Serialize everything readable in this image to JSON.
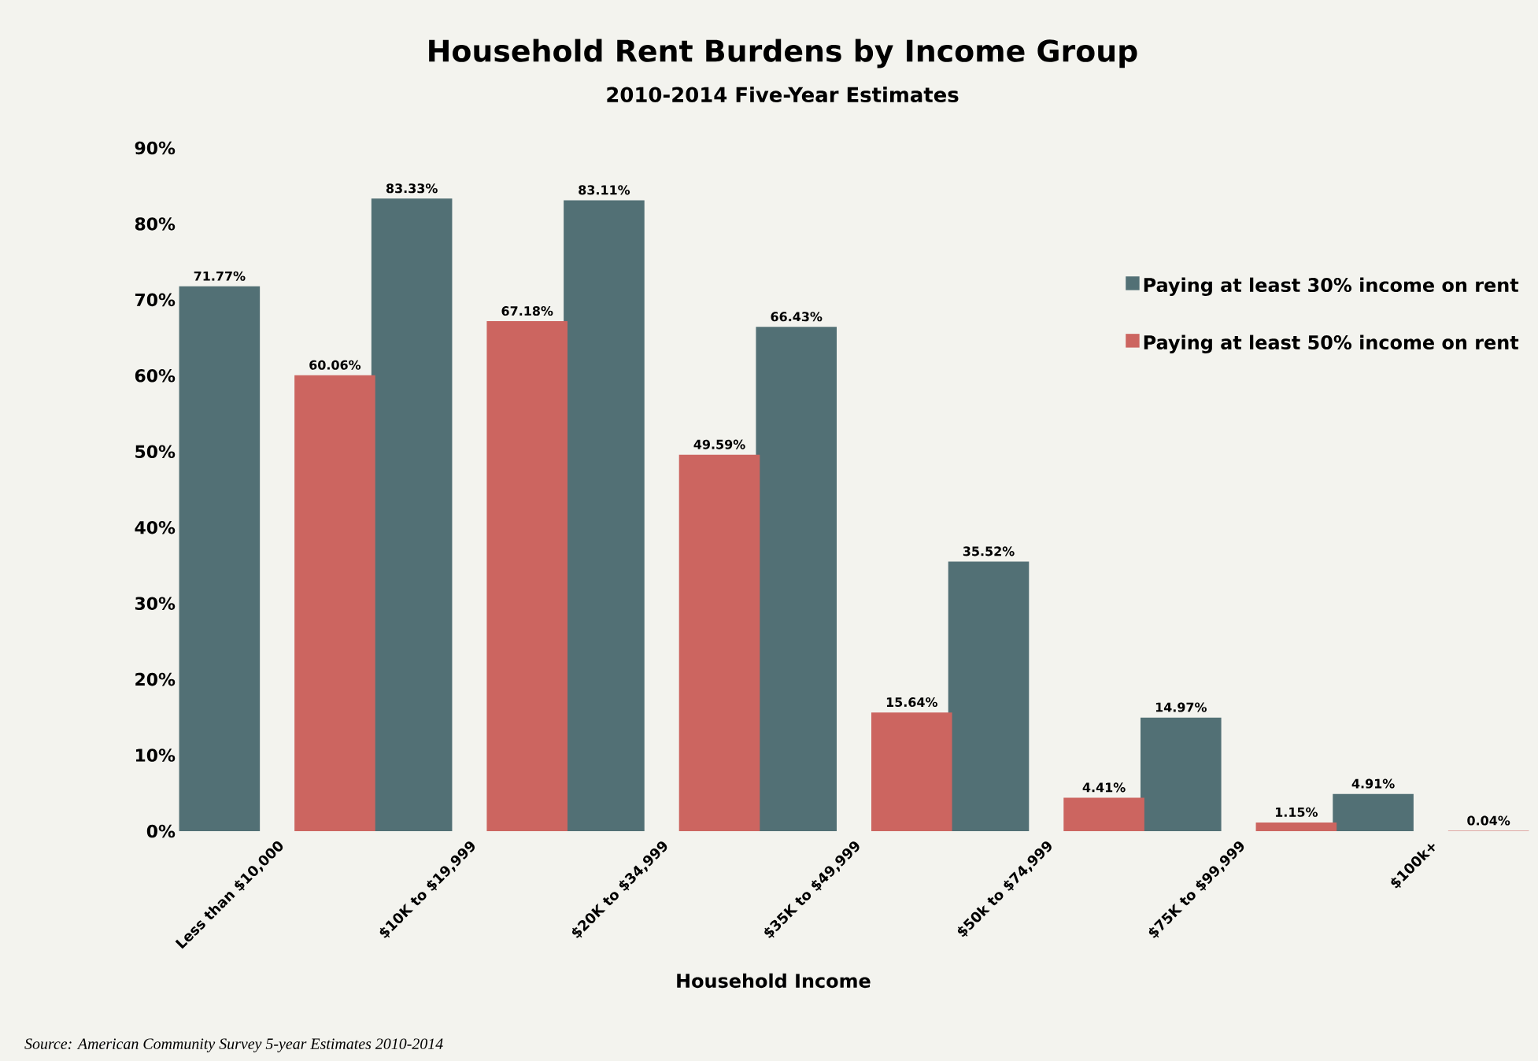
{
  "chart_data": {
    "type": "bar",
    "title": "Household Rent Burdens by Income Group",
    "subtitle": "2010-2014 Five-Year Estimates",
    "xlabel": "Household Income",
    "categories": [
      "Less than $10,000",
      "$10K to $19,999",
      "$20K to $34,999",
      "$35K to $49,999",
      "$50k to $74,999",
      "$75K to $99,999",
      "$100k+"
    ],
    "series": [
      {
        "name": "Paying at least 30% income on rent",
        "color": "#527075",
        "values": [
          71.77,
          83.33,
          83.11,
          66.43,
          35.52,
          14.97,
          4.91
        ],
        "value_labels": [
          "71.77%",
          "83.33%",
          "83.11%",
          "66.43%",
          "35.52%",
          "14.97%",
          "4.91%"
        ]
      },
      {
        "name": "Paying at least 50% income on rent",
        "color": "#cc6560",
        "values": [
          60.06,
          67.18,
          49.59,
          15.64,
          4.41,
          1.15,
          0.04
        ],
        "value_labels": [
          "60.06%",
          "67.18%",
          "49.59%",
          "15.64%",
          "4.41%",
          "1.15%",
          "0.04%"
        ]
      }
    ],
    "ylim": [
      0,
      90
    ],
    "yticks": [
      {
        "value": 0,
        "label": "0%"
      },
      {
        "value": 10,
        "label": "10%"
      },
      {
        "value": 20,
        "label": "20%"
      },
      {
        "value": 30,
        "label": "30%"
      },
      {
        "value": 40,
        "label": "40%"
      },
      {
        "value": 50,
        "label": "50%"
      },
      {
        "value": 60,
        "label": "60%"
      },
      {
        "value": 70,
        "label": "70%"
      },
      {
        "value": 80,
        "label": "80%"
      },
      {
        "value": 90,
        "label": "90%"
      }
    ],
    "legend": "right",
    "grid": false,
    "annotations": [
      "Source:  American Community Survey 5-year Estimates 2010-2014"
    ]
  }
}
